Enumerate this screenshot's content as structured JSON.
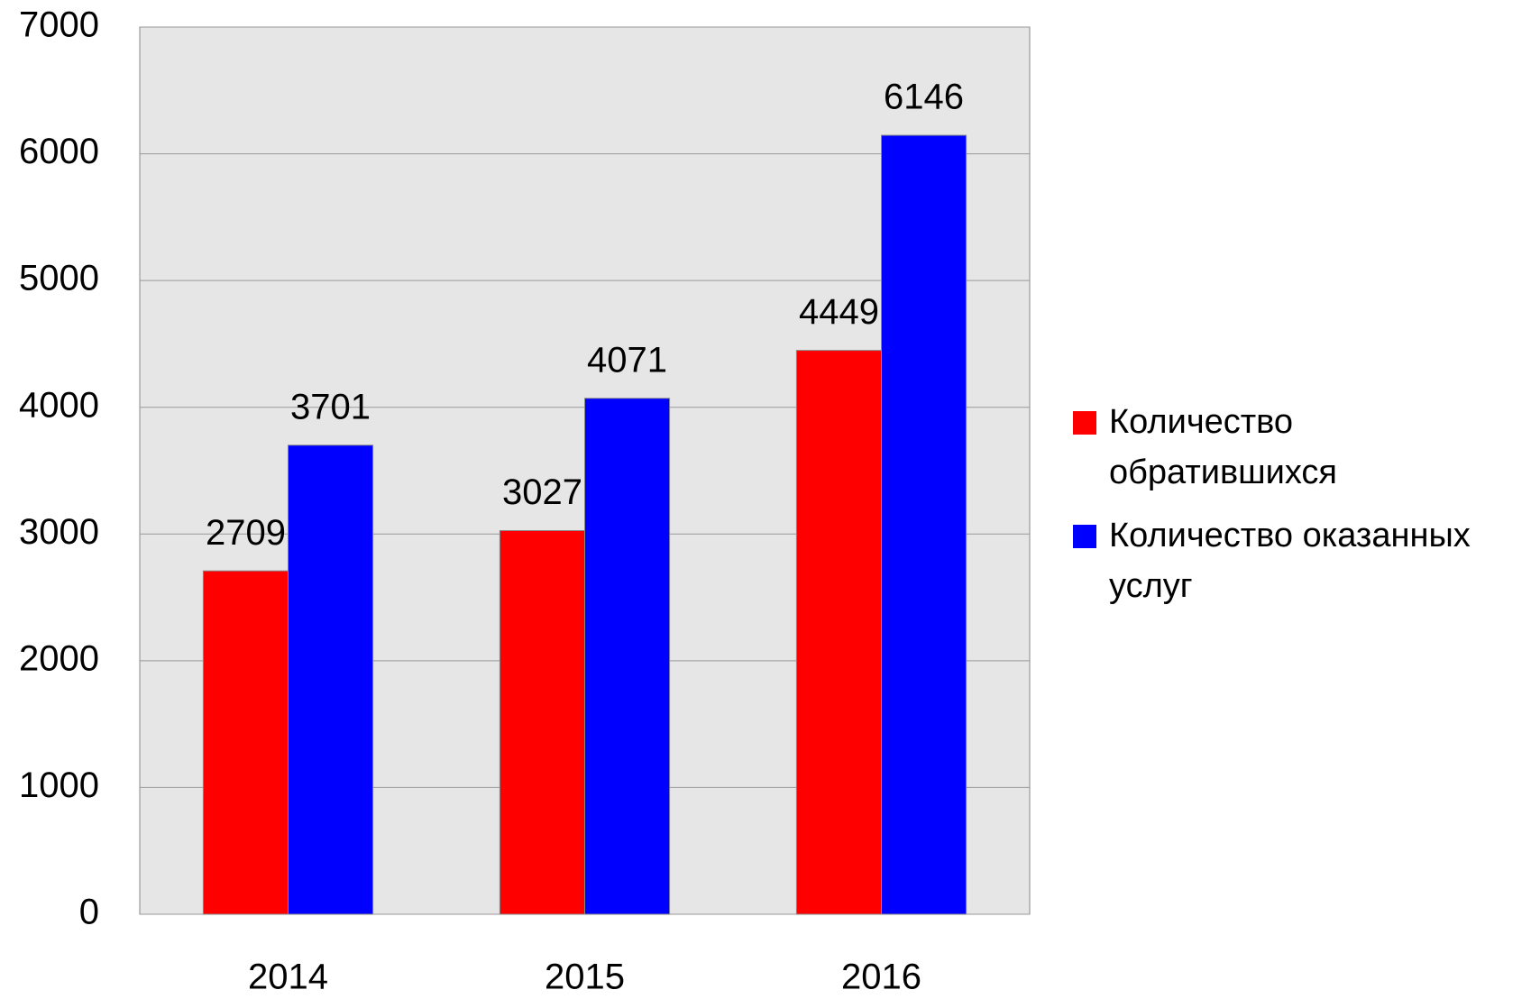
{
  "chart_data": {
    "type": "bar",
    "categories": [
      "2014",
      "2015",
      "2016"
    ],
    "series": [
      {
        "name": "Количество обратившихся",
        "color": "#ff0000",
        "values": [
          2709,
          3027,
          4449
        ]
      },
      {
        "name": "Количество оказанных услуг",
        "color": "#0000ff",
        "values": [
          3701,
          4071,
          6146
        ]
      }
    ],
    "ylim": [
      0,
      7000
    ],
    "yticks": [
      0,
      1000,
      2000,
      3000,
      4000,
      5000,
      6000,
      7000
    ],
    "grid": true,
    "legend": "right",
    "plot_background": "#e6e6e6"
  }
}
